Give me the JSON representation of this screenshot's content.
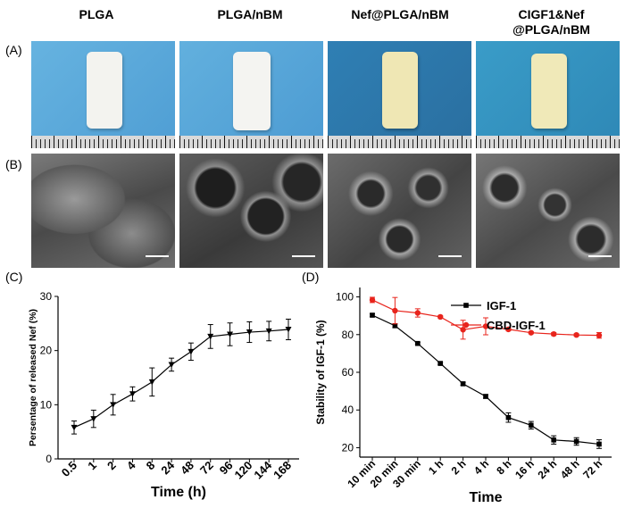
{
  "panel_labels": {
    "a": "(A)",
    "b": "(B)",
    "c": "(C)",
    "d": "(D)"
  },
  "columns": [
    {
      "title_lines": [
        "PLGA"
      ]
    },
    {
      "title_lines": [
        "PLGA/nBM"
      ]
    },
    {
      "title_lines": [
        "Nef@PLGA/nBM"
      ]
    },
    {
      "title_lines": [
        "CIGF1&Nef",
        "@PLGA/nBM"
      ]
    }
  ],
  "colors": {
    "photo_background": "#5aa8d8",
    "scaffold_white": "#f2f2ee",
    "scaffold_yellow": "#efe6b0",
    "series_igf1": "#000000",
    "series_cbd_igf1": "#e8241c"
  },
  "chart_data": [
    {
      "type": "line",
      "title": "",
      "xlabel": "Time (h)",
      "ylabel": "Persentage of released Nef (%)",
      "categories": [
        "0.5",
        "1",
        "2",
        "4",
        "8",
        "24",
        "48",
        "72",
        "96",
        "120",
        "144",
        "168"
      ],
      "yticks": [
        "0",
        "10",
        "20",
        "30"
      ],
      "ylim": [
        0,
        30
      ],
      "grid": false,
      "series": [
        {
          "values": [
            5.8,
            7.4,
            10.0,
            12.0,
            14.2,
            17.4,
            19.8,
            22.6,
            23.0,
            23.4,
            23.6,
            23.9
          ],
          "errors": [
            1.2,
            1.6,
            1.9,
            1.3,
            2.6,
            1.2,
            1.6,
            2.2,
            2.1,
            1.9,
            1.8,
            1.9
          ]
        }
      ]
    },
    {
      "type": "line",
      "title": "",
      "xlabel": "Time",
      "ylabel": "Stability of IGF-1 (%)",
      "categories": [
        "10 min",
        "20 min",
        "30 min",
        "1 h",
        "2 h",
        "4 h",
        "8 h",
        "16 h",
        "24 h",
        "48 h",
        "72 h"
      ],
      "yticks": [
        "20",
        "40",
        "60",
        "80",
        "100"
      ],
      "ylim": [
        15,
        105
      ],
      "grid": false,
      "legend_position": "top-right",
      "series": [
        {
          "name": "IGF-1",
          "values": [
            90.3,
            84.7,
            75.3,
            64.7,
            53.9,
            47.2,
            36.0,
            31.9,
            24.1,
            23.3,
            21.9
          ],
          "errors": [
            0.8,
            1.0,
            0.6,
            0.6,
            0.8,
            1.0,
            2.5,
            2.0,
            2.2,
            2.0,
            2.3
          ]
        },
        {
          "name": "CBD-IGF-1",
          "values": [
            98.4,
            92.7,
            91.5,
            89.4,
            82.6,
            84.4,
            82.8,
            81.0,
            80.3,
            79.8,
            79.6
          ],
          "errors": [
            1.4,
            7.0,
            2.2,
            0.6,
            5.0,
            4.5,
            0.8,
            0.5,
            0.8,
            0.6,
            1.5
          ]
        }
      ]
    }
  ]
}
